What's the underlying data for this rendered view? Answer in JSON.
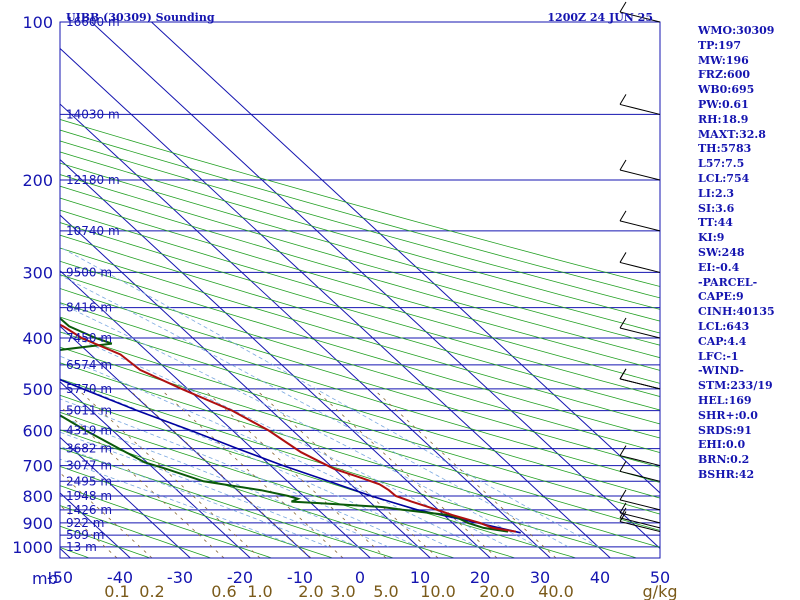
{
  "header": {
    "station": "UIBB (30309) Sounding",
    "time": "1200Z 24 JUN 25"
  },
  "indices": [
    "WMO:30309",
    "TP:197",
    "MW:196",
    "FRZ:600",
    "WB0:695",
    "PW:0.61",
    "RH:18.9",
    "MAXT:32.8",
    "TH:5783",
    "L57:7.5",
    "LCL:754",
    "LI:2.3",
    "SI:3.6",
    "TT:44",
    "KI:9",
    "SW:248",
    "EI:-0.4",
    "-PARCEL-",
    "CAPE:9",
    "CINH:40135",
    "LCL:643",
    "CAP:4.4",
    "LFC:-1",
    "-WIND-",
    "STM:233/19",
    "HEL:169",
    "SHR+:0.0",
    "SRDS:91",
    "EHI:0.0",
    "BRN:0.2",
    "BSHR:42"
  ],
  "colors": {
    "frame": "#1515b0",
    "isotherm": "#1515b0",
    "dry_adiabat": "#22a022",
    "moist_adiabat": "#7aa8e0",
    "mixing_ratio": "#8a6a3a",
    "temperature": "#b01010",
    "dewpoint": "#0a5a0a",
    "parcel": "#0000a0"
  },
  "chart_data": {
    "type": "skew-t",
    "pressure_ticks": [
      "100",
      "200",
      "300",
      "400",
      "500",
      "600",
      "700",
      "800",
      "900",
      "1000"
    ],
    "pressure_axis_label": "mb",
    "temperature_ticks": [
      "-50",
      "-40",
      "-30",
      "-20",
      "-10",
      "0",
      "10",
      "20",
      "30",
      "40",
      "50"
    ],
    "mixing_ratio_ticks": [
      "0.1",
      "0.2",
      "0.6",
      "1.0",
      "2.0",
      "3.0",
      "5.0",
      "10.0",
      "20.0",
      "40.0"
    ],
    "mixing_ratio_unit": "g/kg",
    "heights": [
      {
        "p": 100,
        "label": "16600 m"
      },
      {
        "p": 150,
        "label": "14030 m"
      },
      {
        "p": 200,
        "label": "12180 m"
      },
      {
        "p": 250,
        "label": "10740 m"
      },
      {
        "p": 300,
        "label": "9500 m"
      },
      {
        "p": 350,
        "label": "8416 m"
      },
      {
        "p": 400,
        "label": "7450 m"
      },
      {
        "p": 450,
        "label": "6574 m"
      },
      {
        "p": 500,
        "label": "5770 m"
      },
      {
        "p": 550,
        "label": "5011 m"
      },
      {
        "p": 600,
        "label": "4319 m"
      },
      {
        "p": 650,
        "label": "3682 m"
      },
      {
        "p": 700,
        "label": "3077 m"
      },
      {
        "p": 750,
        "label": "2495 m"
      },
      {
        "p": 800,
        "label": "1948 m"
      },
      {
        "p": 850,
        "label": "1426 m"
      },
      {
        "p": 900,
        "label": "922 m"
      },
      {
        "p": 950,
        "label": "509 m"
      },
      {
        "p": 1000,
        "label": "13 m"
      }
    ],
    "temperature": [
      [
        935,
        29
      ],
      [
        920,
        25.8
      ],
      [
        900,
        24.6
      ],
      [
        870,
        21.4
      ],
      [
        850,
        19.8
      ],
      [
        820,
        17
      ],
      [
        800,
        15.4
      ],
      [
        780,
        15.3
      ],
      [
        760,
        14.8
      ],
      [
        740,
        13
      ],
      [
        710,
        10
      ],
      [
        690,
        9
      ],
      [
        660,
        7.5
      ],
      [
        600,
        6
      ],
      [
        550,
        3.5
      ],
      [
        500,
        -1
      ],
      [
        460,
        -4.5
      ],
      [
        430,
        -5
      ],
      [
        400,
        -8.5
      ],
      [
        380,
        -9.5
      ],
      [
        350,
        -12.5
      ],
      [
        300,
        -19.5
      ],
      [
        260,
        -27
      ],
      [
        250,
        -28.5
      ],
      [
        240,
        -30
      ],
      [
        230,
        -31
      ],
      [
        210,
        -36.5
      ],
      [
        195,
        -42
      ],
      [
        180,
        -41
      ],
      [
        165,
        -42
      ],
      [
        150,
        -43
      ],
      [
        130,
        -44
      ],
      [
        120,
        -40
      ],
      [
        115,
        -40.5
      ],
      [
        100,
        -40.5
      ]
    ],
    "dewpoint": [
      [
        935,
        27.7
      ],
      [
        920,
        24.3
      ],
      [
        900,
        22.6
      ],
      [
        880,
        21.8
      ],
      [
        870,
        20.8
      ],
      [
        850,
        14
      ],
      [
        840,
        11.3
      ],
      [
        825,
        1
      ],
      [
        820,
        -3
      ],
      [
        810,
        -1.4
      ],
      [
        800,
        -2.5
      ],
      [
        780,
        -6
      ],
      [
        750,
        -14
      ],
      [
        710,
        -18
      ],
      [
        690,
        -20.4
      ],
      [
        600,
        -24.5
      ],
      [
        550,
        -26.5
      ],
      [
        500,
        -24
      ],
      [
        470,
        -23.8
      ],
      [
        450,
        -22
      ],
      [
        430,
        -21.3
      ],
      [
        410,
        -4.5
      ],
      [
        400,
        -6.2
      ],
      [
        380,
        -8.5
      ],
      [
        350,
        -8.7
      ],
      [
        330,
        -11.6
      ],
      [
        300,
        -17.2
      ],
      [
        250,
        -25.2
      ],
      [
        220,
        -33
      ],
      [
        205,
        -38
      ],
      [
        195,
        -48
      ],
      [
        180,
        -55
      ],
      [
        165,
        -62
      ],
      [
        150,
        -66
      ],
      [
        140,
        -71
      ],
      [
        120,
        -80
      ],
      [
        100,
        -88
      ]
    ],
    "parcel": [
      [
        940,
        29.6
      ],
      [
        900,
        24.2
      ],
      [
        850,
        16.5
      ],
      [
        800,
        11.3
      ],
      [
        750,
        6.9
      ],
      [
        700,
        2.1
      ],
      [
        650,
        -2.4
      ],
      [
        600,
        -7
      ],
      [
        550,
        -12.3
      ],
      [
        500,
        -17.5
      ],
      [
        450,
        -23
      ],
      [
        400,
        -29.5
      ],
      [
        350,
        -36.2
      ],
      [
        300,
        -44
      ],
      [
        250,
        -53.7
      ],
      [
        200,
        -66
      ],
      [
        150,
        -79
      ],
      [
        120,
        -85
      ],
      [
        100,
        -92
      ]
    ],
    "wind_barb_levels": [
      935,
      920,
      900,
      850,
      750,
      700,
      500,
      500,
      400,
      300,
      250,
      200,
      150,
      100
    ]
  }
}
